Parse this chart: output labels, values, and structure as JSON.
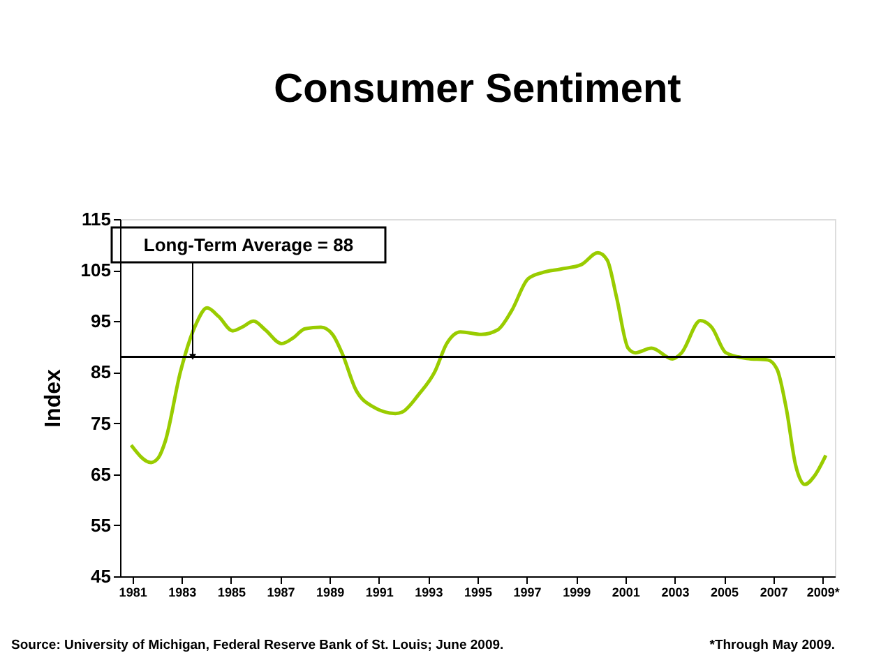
{
  "chart_data": {
    "type": "line",
    "title": "Consumer Sentiment",
    "ylabel": "Index",
    "x": [
      1980.95,
      1981.76,
      1982.05,
      1982.33,
      1982.95,
      1983.56,
      1984.03,
      1984.5,
      1985.07,
      1985.44,
      1985.92,
      1986.39,
      1987.05,
      1987.52,
      1988.0,
      1988.65,
      1989.12,
      1989.5,
      1990.07,
      1990.73,
      1991.67,
      1991.95,
      1992.61,
      1993.27,
      1993.75,
      1994.31,
      1995.16,
      1995.82,
      1996.38,
      1997.05,
      1997.62,
      1998.37,
      1999.22,
      1999.88,
      2000.26,
      2000.64,
      2001.11,
      2001.4,
      2002.06,
      2002.91,
      2003.28,
      2004.04,
      2004.5,
      2005.08,
      2005.92,
      2006.77,
      2007.15,
      2007.53,
      2007.9,
      2008.28,
      2008.66,
      2009.13
    ],
    "series": [
      {
        "color": "#99cc00",
        "values": [
          70.7,
          67.3,
          68.2,
          71.4,
          85.1,
          94.2,
          97.6,
          95.9,
          93.1,
          93.8,
          95.0,
          93.3,
          90.6,
          91.7,
          93.5,
          93.8,
          92.4,
          88.8,
          81.5,
          78.3,
          76.9,
          77.2,
          80.6,
          85.1,
          90.6,
          92.9,
          92.4,
          93.3,
          97.0,
          103.3,
          104.5,
          105.2,
          106.1,
          108.4,
          107.0,
          99.7,
          89.7,
          88.8,
          89.7,
          87.6,
          88.8,
          95.1,
          93.8,
          88.8,
          87.7,
          87.4,
          85.6,
          77.8,
          66.9,
          63.0,
          64.6,
          68.7
        ]
      }
    ],
    "xlim": [
      1980.5,
      2009.5
    ],
    "xticks": [
      1981,
      1983,
      1985,
      1987,
      1989,
      1991,
      1993,
      1995,
      1997,
      1999,
      2001,
      2003,
      2005,
      2007,
      {
        "value": 2009,
        "label": "2009*"
      }
    ],
    "ylim": [
      45,
      115
    ],
    "yticks": [
      45,
      55,
      65,
      75,
      85,
      95,
      105,
      115
    ],
    "grid": false,
    "marker": "none",
    "line_style": "solid",
    "ref_lines": [
      {
        "axis": "y",
        "value": 88,
        "label": "Long-Term Average = 88",
        "color": "#000000"
      }
    ],
    "annotations": [
      "Source: University of Michigan, Federal Reserve Bank of St. Louis; June 2009.",
      "*Through May 2009."
    ]
  }
}
